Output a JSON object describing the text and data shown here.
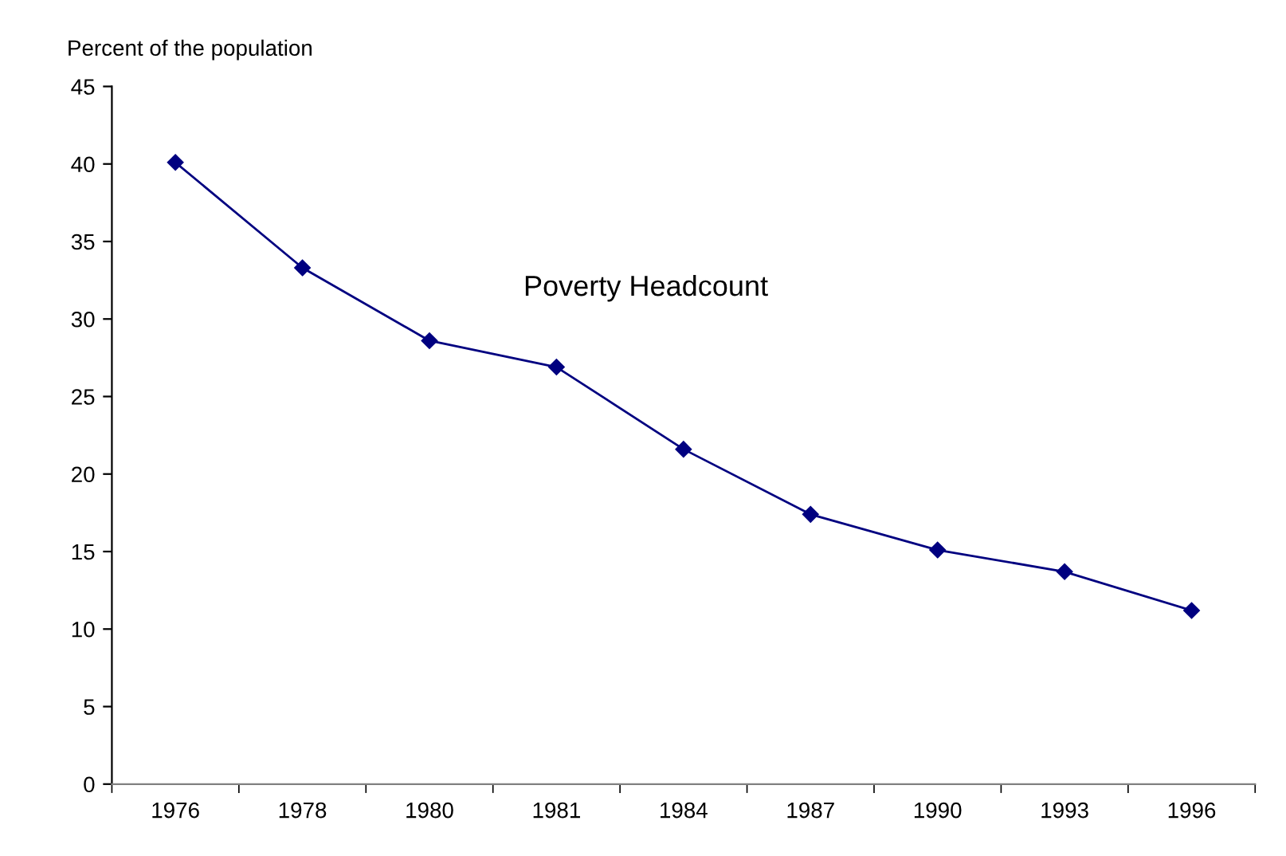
{
  "chart_data": {
    "type": "line",
    "ylabel": "Percent of the population",
    "categories": [
      "1976",
      "1978",
      "1980",
      "1981",
      "1984",
      "1987",
      "1990",
      "1993",
      "1996"
    ],
    "series": [
      {
        "name": "Poverty Headcount",
        "color": "#000080",
        "values": [
          40.1,
          33.3,
          28.6,
          26.9,
          21.6,
          17.4,
          15.1,
          13.7,
          11.2
        ]
      }
    ],
    "ylim": [
      0,
      45
    ],
    "yticks": [
      0,
      5,
      10,
      15,
      20,
      25,
      30,
      35,
      40,
      45
    ],
    "grid": false,
    "legend": false,
    "marker": "diamond",
    "line_style": "solid"
  }
}
